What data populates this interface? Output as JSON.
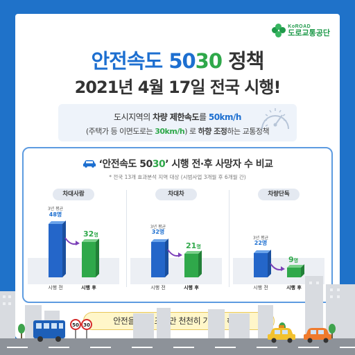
{
  "logo": {
    "top": "KoROAD",
    "bottom": "도로교통공단"
  },
  "title": {
    "line1_a": "안전속도 ",
    "line1_b": "50",
    "line1_c": "30",
    "line1_d": " 정책",
    "line2": "2021년 4월 17일 전국 시행!"
  },
  "policy": {
    "l1_a": "도시지역의 ",
    "l1_b": "차량 제한속도",
    "l1_c": "를 ",
    "l1_d": "50km/h",
    "l2_a": "(주택가 등 이면도로는 ",
    "l2_b": "30km/h",
    "l2_c": ") 로 ",
    "l2_d": "하향 조정",
    "l2_e": "하는 교통정책"
  },
  "compare": {
    "heading_a": "‘안전속도 50",
    "heading_b": "30",
    "heading_c": "’ 시행 전·후 사망자 수 비교",
    "sub": "* 전국 13개 효과분석 지역 대상 (시범사업 3개월 후 6개월 간)",
    "before_label": "시행 전",
    "after_label": "시행 후",
    "avg_label": "3년 평균",
    "panels": [
      {
        "title": "차대사람",
        "before": "48명",
        "after": "32",
        "unit": "명",
        "before_value": 48,
        "after_value": 32
      },
      {
        "title": "차대차",
        "before": "32명",
        "after": "21",
        "unit": "명",
        "before_value": 32,
        "after_value": 21
      },
      {
        "title": "차량단독",
        "before": "22명",
        "after": "9",
        "unit": "명",
        "before_value": 22,
        "after_value": 9
      }
    ]
  },
  "footer": {
    "message": "안전을 위해 조금만 천천히 가기로 해요!"
  },
  "signs": [
    "50",
    "30"
  ],
  "colors": {
    "background": "#1f72c9",
    "blue": "#1d6fd0",
    "green": "#2fa84a",
    "bubble": "#fff6c9"
  },
  "icons": [
    "logo-clover-icon",
    "speed-gauge-icon",
    "car-icon",
    "arrow-icon",
    "bus-icon",
    "speed-sign-icon",
    "taxi-icon",
    "car-orange-icon",
    "tree-icon"
  ]
}
